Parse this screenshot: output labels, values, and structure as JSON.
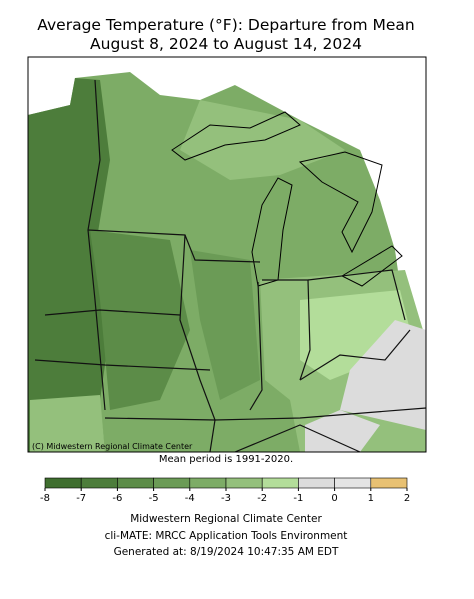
{
  "header": {
    "title": "Average Temperature (°F): Departure from Mean",
    "subtitle": "August 8, 2024 to August 14, 2024"
  },
  "map": {
    "credit": "(C) Midwestern Regional Climate Center",
    "note": "Mean period is 1991-2020."
  },
  "legend": {
    "ticks": [
      -8,
      -7,
      -6,
      -5,
      -4,
      -3,
      -2,
      -1,
      0,
      1,
      2
    ],
    "colors": [
      "#3f6e2f",
      "#4d7d3b",
      "#5c8c48",
      "#6b9b56",
      "#7dac66",
      "#94c07c",
      "#b3dd9a",
      "#dcdcdc",
      "#e4e4e4",
      "#e8c173"
    ]
  },
  "footer": {
    "lines": [
      "Midwestern Regional Climate Center",
      "cli-MATE: MRCC Application Tools Environment",
      "Generated at: 8/19/2024 10:47:35 AM EDT"
    ]
  }
}
